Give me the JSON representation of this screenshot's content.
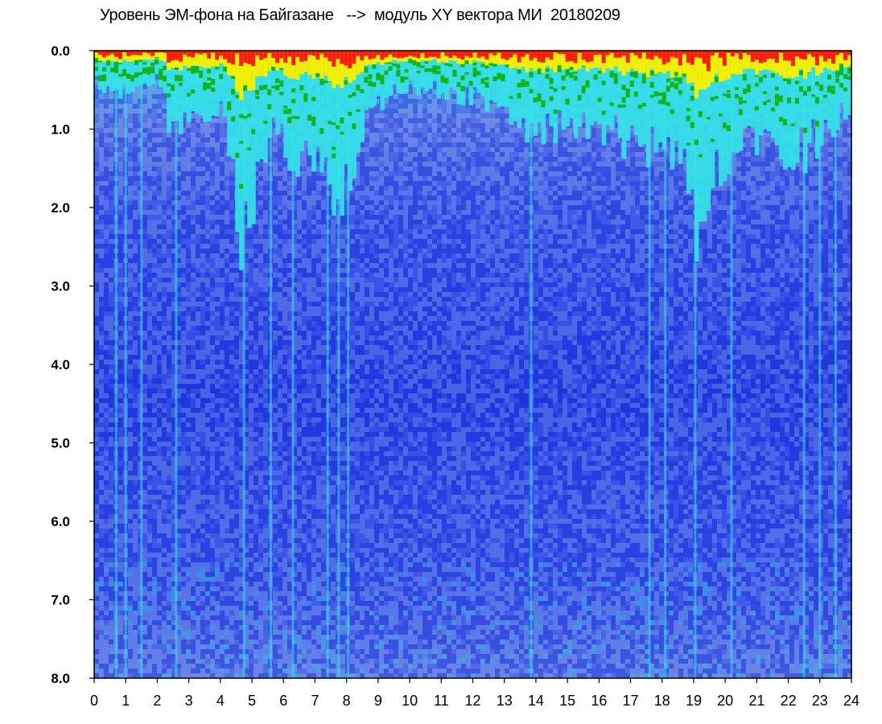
{
  "chart_data": {
    "type": "heatmap",
    "title": "Уровень ЭМ-фона на Байгазане   -->  модуль XY вектора МИ  20180209",
    "xlabel": "",
    "ylabel": "",
    "xlim": [
      0,
      24
    ],
    "ylim": [
      0,
      8
    ],
    "y_inverted": true,
    "x_ticks": [
      "0",
      "1",
      "2",
      "3",
      "4",
      "5",
      "6",
      "7",
      "8",
      "9",
      "10",
      "11",
      "12",
      "13",
      "14",
      "15",
      "16",
      "17",
      "18",
      "19",
      "20",
      "21",
      "22",
      "23",
      "24"
    ],
    "y_ticks": [
      "0.0",
      "1.0",
      "2.0",
      "3.0",
      "4.0",
      "5.0",
      "6.0",
      "7.0",
      "8.0"
    ],
    "colorscale": [
      "#0a1ed8",
      "#3d57e8",
      "#7f9ae6",
      "#34e4e8",
      "#12b418",
      "#f2f000",
      "#ff1c0a"
    ],
    "bright_vertical_stripes_hours": [
      0.7,
      1.0,
      1.5,
      2.6,
      4.75,
      5.6,
      6.3,
      7.4,
      7.75,
      8.05,
      13.85,
      17.6,
      18.1,
      19.05,
      20.2,
      22.5,
      23.0,
      23.5
    ],
    "activity_profile": [
      {
        "hour": 0.0,
        "max_depth": 0.35
      },
      {
        "hour": 1.0,
        "max_depth": 0.45
      },
      {
        "hour": 2.0,
        "max_depth": 0.3
      },
      {
        "hour": 2.5,
        "max_depth": 0.9
      },
      {
        "hour": 3.0,
        "max_depth": 0.7
      },
      {
        "hour": 4.0,
        "max_depth": 0.6
      },
      {
        "hour": 4.7,
        "max_depth": 2.3
      },
      {
        "hour": 5.5,
        "max_depth": 0.9
      },
      {
        "hour": 6.3,
        "max_depth": 1.2
      },
      {
        "hour": 7.4,
        "max_depth": 1.5
      },
      {
        "hour": 7.8,
        "max_depth": 1.8
      },
      {
        "hour": 8.5,
        "max_depth": 0.9
      },
      {
        "hour": 9.0,
        "max_depth": 0.6
      },
      {
        "hour": 10.0,
        "max_depth": 0.4
      },
      {
        "hour": 12.0,
        "max_depth": 0.5
      },
      {
        "hour": 13.0,
        "max_depth": 0.6
      },
      {
        "hour": 13.8,
        "max_depth": 0.9
      },
      {
        "hour": 15.0,
        "max_depth": 0.8
      },
      {
        "hour": 17.0,
        "max_depth": 1.0
      },
      {
        "hour": 18.5,
        "max_depth": 1.1
      },
      {
        "hour": 19.1,
        "max_depth": 1.9
      },
      {
        "hour": 19.6,
        "max_depth": 1.3
      },
      {
        "hour": 21.0,
        "max_depth": 1.0
      },
      {
        "hour": 22.5,
        "max_depth": 1.1
      },
      {
        "hour": 23.5,
        "max_depth": 0.8
      },
      {
        "hour": 24.0,
        "max_depth": 0.6
      }
    ]
  }
}
